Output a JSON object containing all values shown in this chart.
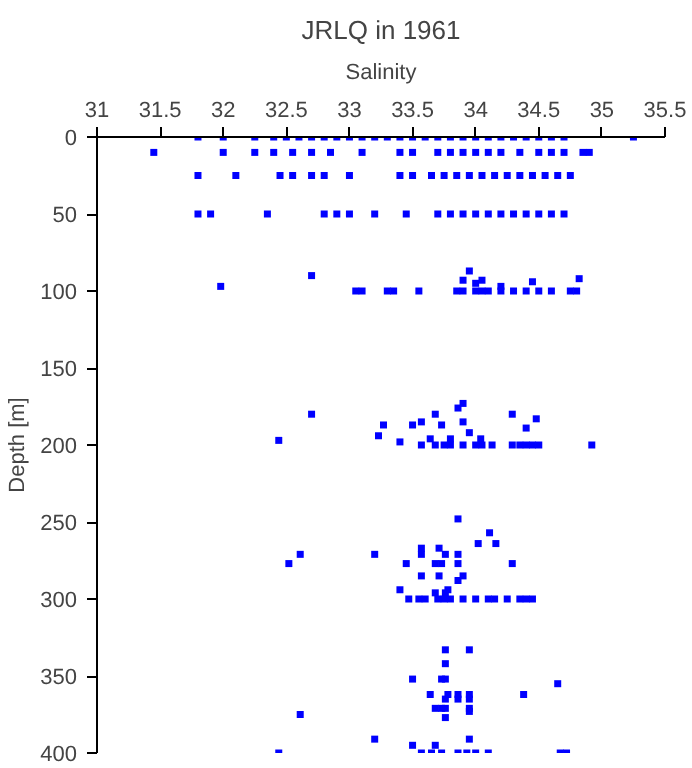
{
  "chart_data": {
    "type": "scatter",
    "title": "JRLQ in 1961",
    "xlabel": "Salinity",
    "ylabel": "Depth [m]",
    "xlim": [
      31,
      35.5
    ],
    "xticks": [
      31,
      31.5,
      32,
      32.5,
      33,
      33.5,
      34,
      34.5,
      35,
      35.5
    ],
    "ylim": [
      400,
      0
    ],
    "yticks": [
      0,
      50,
      100,
      150,
      200,
      250,
      300,
      350,
      400
    ],
    "marker": "square",
    "grid": false,
    "series": [
      {
        "color": "#0000ff",
        "x": [
          31.8,
          32.0,
          32.25,
          32.4,
          32.5,
          32.6,
          32.7,
          32.8,
          32.9,
          33.0,
          33.1,
          33.2,
          33.3,
          33.4,
          33.5,
          33.6,
          33.7,
          33.8,
          33.9,
          34.0,
          34.1,
          34.2,
          34.3,
          34.4,
          34.5,
          34.6,
          34.7,
          35.25,
          31.45,
          32.0,
          32.25,
          32.4,
          32.55,
          32.7,
          32.85,
          33.1,
          33.4,
          33.5,
          33.7,
          33.8,
          33.9,
          34.0,
          34.1,
          34.2,
          34.35,
          34.5,
          34.6,
          34.7,
          34.85,
          34.9,
          31.8,
          32.1,
          32.45,
          32.55,
          32.7,
          32.8,
          33.0,
          33.4,
          33.5,
          33.65,
          33.75,
          33.85,
          33.95,
          34.05,
          34.15,
          34.25,
          34.35,
          34.45,
          34.55,
          34.65,
          34.75,
          31.8,
          31.9,
          32.35,
          32.8,
          32.9,
          33.0,
          33.2,
          33.45,
          33.7,
          33.8,
          33.9,
          34.0,
          34.1,
          34.2,
          34.3,
          34.4,
          34.5,
          34.6,
          34.7,
          33.05,
          33.1,
          33.3,
          33.35,
          33.55,
          33.85,
          33.9,
          34.0,
          34.05,
          34.1,
          34.2,
          34.3,
          34.4,
          34.5,
          34.6,
          34.75,
          34.8,
          31.98,
          32.7,
          33.95,
          33.9,
          34.0,
          34.05,
          34.45,
          34.82,
          34.2,
          32.44,
          32.7,
          33.23,
          33.27,
          33.4,
          33.5,
          33.57,
          33.57,
          33.64,
          33.68,
          33.68,
          33.73,
          33.8,
          33.86,
          33.9,
          33.9,
          33.95,
          34.04,
          34.29,
          34.4,
          34.48,
          33.75,
          33.8,
          33.9,
          34.0,
          34.05,
          34.13,
          34.29,
          34.35,
          34.4,
          34.45,
          34.5,
          34.92,
          33.86,
          34.11,
          34.02,
          34.16,
          33.57,
          33.71,
          32.61,
          33.2,
          33.57,
          33.76,
          33.86,
          32.52,
          33.45,
          33.68,
          33.73,
          33.86,
          34.29,
          33.57,
          33.71,
          33.9,
          33.86,
          33.4,
          33.78,
          33.68,
          33.76,
          33.47,
          33.55,
          33.6,
          33.7,
          33.75,
          33.8,
          33.9,
          34.0,
          34.1,
          34.15,
          34.25,
          34.35,
          34.4,
          34.45,
          33.76,
          33.95,
          33.76,
          33.5,
          33.73,
          33.76,
          34.65,
          33.64,
          33.78,
          33.86,
          33.95,
          34.38,
          33.76,
          33.86,
          33.95,
          33.68,
          33.73,
          33.76,
          33.95,
          33.95,
          32.61,
          33.76,
          33.2,
          33.95,
          33.5,
          33.68,
          32.44,
          33.57,
          33.65,
          33.73,
          33.86,
          33.93,
          34.0,
          34.1,
          34.67,
          34.72
        ],
        "values": [
          0,
          0,
          0,
          0,
          0,
          0,
          0,
          0,
          0,
          0,
          0,
          0,
          0,
          0,
          0,
          0,
          0,
          0,
          0,
          0,
          0,
          0,
          0,
          0,
          0,
          0,
          0,
          0,
          10,
          10,
          10,
          10,
          10,
          10,
          10,
          10,
          10,
          10,
          10,
          10,
          10,
          10,
          10,
          10,
          10,
          10,
          10,
          10,
          10,
          10,
          25,
          25,
          25,
          25,
          25,
          25,
          25,
          25,
          25,
          25,
          25,
          25,
          25,
          25,
          25,
          25,
          25,
          25,
          25,
          25,
          25,
          50,
          50,
          50,
          50,
          50,
          50,
          50,
          50,
          50,
          50,
          50,
          50,
          50,
          50,
          50,
          50,
          50,
          50,
          50,
          100,
          100,
          100,
          100,
          100,
          100,
          100,
          100,
          100,
          100,
          100,
          100,
          100,
          100,
          100,
          100,
          100,
          97,
          90,
          87,
          93,
          95,
          93,
          94,
          92,
          97,
          197,
          180,
          194,
          187,
          198,
          187,
          185,
          200,
          196,
          180,
          200,
          187,
          196,
          176,
          173,
          185,
          192,
          196,
          180,
          189,
          183,
          200,
          200,
          200,
          200,
          200,
          200,
          200,
          200,
          200,
          200,
          200,
          200,
          248,
          257,
          264,
          264,
          267,
          267,
          271,
          271,
          271,
          271,
          271,
          277,
          277,
          277,
          277,
          277,
          277,
          285,
          285,
          285,
          288,
          294,
          294,
          296,
          296,
          300,
          300,
          300,
          300,
          300,
          300,
          300,
          300,
          300,
          300,
          300,
          300,
          300,
          300,
          333,
          333,
          342,
          352,
          352,
          352,
          355,
          362,
          362,
          362,
          362,
          362,
          365,
          365,
          365,
          371,
          371,
          371,
          371,
          373,
          375,
          377,
          391,
          391,
          395,
          395,
          400,
          400,
          400,
          400,
          400,
          400,
          400,
          400,
          400,
          400
        ]
      }
    ]
  }
}
